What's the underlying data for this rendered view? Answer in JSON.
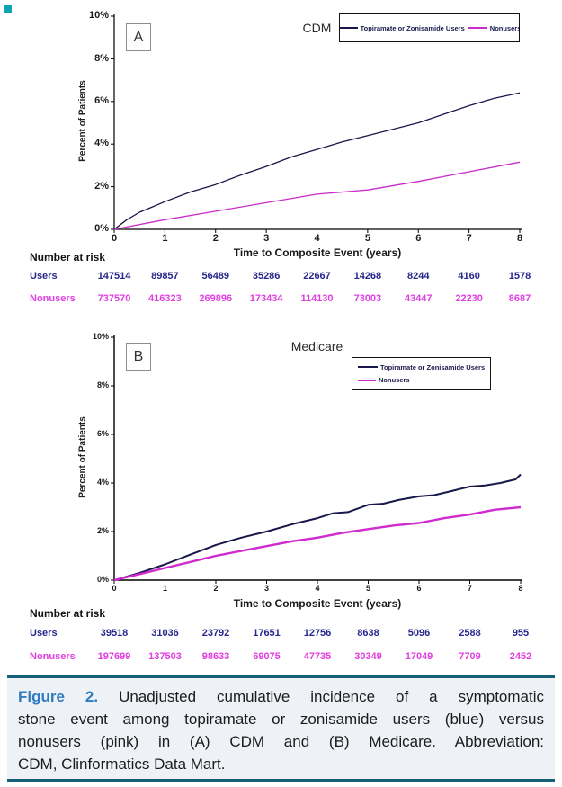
{
  "figure": {
    "accent_color": "#10a3b2"
  },
  "colors": {
    "users_line": "#18184a",
    "nonusers_line": "#c92cc9",
    "users_text": "#26268c",
    "nonusers_text": "#e03fe0"
  },
  "chart_data": [
    {
      "type": "line",
      "panel_label": "A",
      "title": "CDM",
      "xlabel": "Time to Composite Event (years)",
      "ylabel": "Percent of Patients",
      "xlim": [
        0,
        8
      ],
      "ylim": [
        0,
        10
      ],
      "xticks": [
        "0",
        "1",
        "2",
        "3",
        "4",
        "5",
        "6",
        "7",
        "8"
      ],
      "yticks": [
        "0%",
        "2%",
        "4%",
        "6%",
        "8%",
        "10%"
      ],
      "grid": false,
      "legend_position": "top-right",
      "series": [
        {
          "name": "Topiramate or Zonisamide Users",
          "color": "#18184a",
          "x": [
            0,
            0.25,
            0.5,
            0.75,
            1,
            1.5,
            2,
            2.5,
            3,
            3.5,
            4,
            4.5,
            5,
            5.5,
            6,
            6.5,
            7,
            7.5,
            8
          ],
          "y": [
            0,
            0.45,
            0.8,
            1.05,
            1.3,
            1.75,
            2.1,
            2.55,
            2.95,
            3.4,
            3.75,
            4.1,
            4.4,
            4.7,
            5.0,
            5.4,
            5.8,
            6.15,
            6.4
          ]
        },
        {
          "name": "Nonusers",
          "color": "#c92cc9",
          "x": [
            0,
            1,
            2,
            3,
            4,
            5,
            6,
            7,
            8
          ],
          "y": [
            0,
            0.45,
            0.85,
            1.25,
            1.65,
            1.85,
            2.25,
            2.7,
            3.15
          ]
        }
      ]
    },
    {
      "type": "line",
      "panel_label": "B",
      "title": "Medicare",
      "xlabel": "Time to Composite Event (years)",
      "ylabel": "Percent of Patients",
      "xlim": [
        0,
        8
      ],
      "ylim": [
        0,
        10
      ],
      "xticks": [
        "0",
        "1",
        "2",
        "3",
        "4",
        "5",
        "6",
        "7",
        "8"
      ],
      "yticks": [
        "0%",
        "2%",
        "4%",
        "6%",
        "8%",
        "10%"
      ],
      "grid": false,
      "legend_position": "top-right",
      "series": [
        {
          "name": "Topiramate or Zonisamide Users",
          "color": "#18184a",
          "x": [
            0,
            0.5,
            1,
            1.5,
            2,
            2.5,
            3,
            3.5,
            4,
            4.3,
            4.6,
            5,
            5.3,
            5.6,
            6,
            6.3,
            6.6,
            7,
            7.3,
            7.6,
            7.9,
            8
          ],
          "y": [
            0,
            0.3,
            0.65,
            1.05,
            1.45,
            1.75,
            2.0,
            2.3,
            2.55,
            2.75,
            2.8,
            3.1,
            3.15,
            3.3,
            3.45,
            3.5,
            3.65,
            3.85,
            3.9,
            4.0,
            4.15,
            4.35
          ]
        },
        {
          "name": "Nonusers",
          "color": "#cf2bcf",
          "x": [
            0,
            0.5,
            1,
            1.5,
            2,
            2.5,
            3,
            3.5,
            4,
            4.5,
            5,
            5.5,
            6,
            6.5,
            7,
            7.5,
            8
          ],
          "y": [
            0,
            0.25,
            0.5,
            0.75,
            1.0,
            1.2,
            1.4,
            1.6,
            1.75,
            1.95,
            2.1,
            2.25,
            2.35,
            2.55,
            2.7,
            2.9,
            3.0
          ]
        }
      ]
    }
  ],
  "risk_tables": [
    {
      "heading": "Number at risk",
      "rows": [
        {
          "label": "Users",
          "color": "#26268c",
          "values": [
            "147514",
            "89857",
            "56489",
            "35286",
            "22667",
            "14268",
            "8244",
            "4160",
            "1578"
          ]
        },
        {
          "label": "Nonusers",
          "color": "#e03fe0",
          "values": [
            "737570",
            "416323",
            "269896",
            "173434",
            "114130",
            "73003",
            "43447",
            "22230",
            "8687"
          ]
        }
      ]
    },
    {
      "heading": "Number at risk",
      "rows": [
        {
          "label": "Users",
          "color": "#26268c",
          "values": [
            "39518",
            "31036",
            "23792",
            "17651",
            "12756",
            "8638",
            "5096",
            "2588",
            "955"
          ]
        },
        {
          "label": "Nonusers",
          "color": "#e03fe0",
          "values": [
            "197699",
            "137503",
            "98633",
            "69075",
            "47735",
            "30349",
            "17049",
            "7709",
            "2452"
          ]
        }
      ]
    }
  ],
  "caption": {
    "label": "Figure 2.",
    "label_color": "#2e7cc1",
    "rule_color": "#155f78",
    "background": "#eef2f7",
    "lines": [
      "Unadjusted cumulative incidence of a symptomatic",
      "stone event among topiramate or zonisamide users (blue) versus",
      "nonusers (pink) in (A) CDM and (B) Medicare. Abbreviation:",
      "CDM, Clinformatics Data Mart."
    ],
    "text": "Unadjusted cumulative incidence of a symptomatic stone event among topiramate or zonisamide users (blue) versus nonusers (pink) in (A) CDM and (B) Medicare. Abbreviation: CDM, Clinformatics Data Mart."
  }
}
